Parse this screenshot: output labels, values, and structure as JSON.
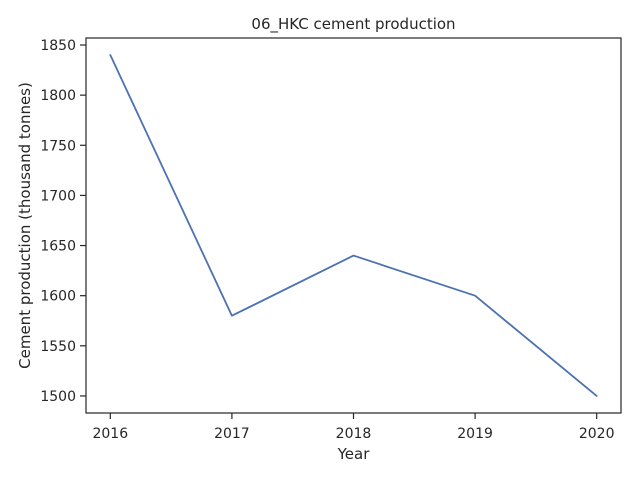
{
  "chart_data": {
    "type": "line",
    "title": "06_HKC cement production",
    "xlabel": "Year",
    "ylabel": "Cement production (thousand tonnes)",
    "x": [
      2016,
      2017,
      2018,
      2019,
      2020
    ],
    "series": [
      {
        "values": [
          1840,
          1580,
          1640,
          1600,
          1500
        ],
        "color": "#4c72b0"
      }
    ],
    "xlim": [
      2015.8,
      2020.2
    ],
    "ylim": [
      1483,
      1857
    ],
    "xticks": [
      "2016",
      "2017",
      "2018",
      "2019",
      "2020"
    ],
    "yticks": [
      "1500",
      "1550",
      "1600",
      "1650",
      "1700",
      "1750",
      "1800",
      "1850"
    ],
    "grid": false,
    "legend": "none"
  }
}
